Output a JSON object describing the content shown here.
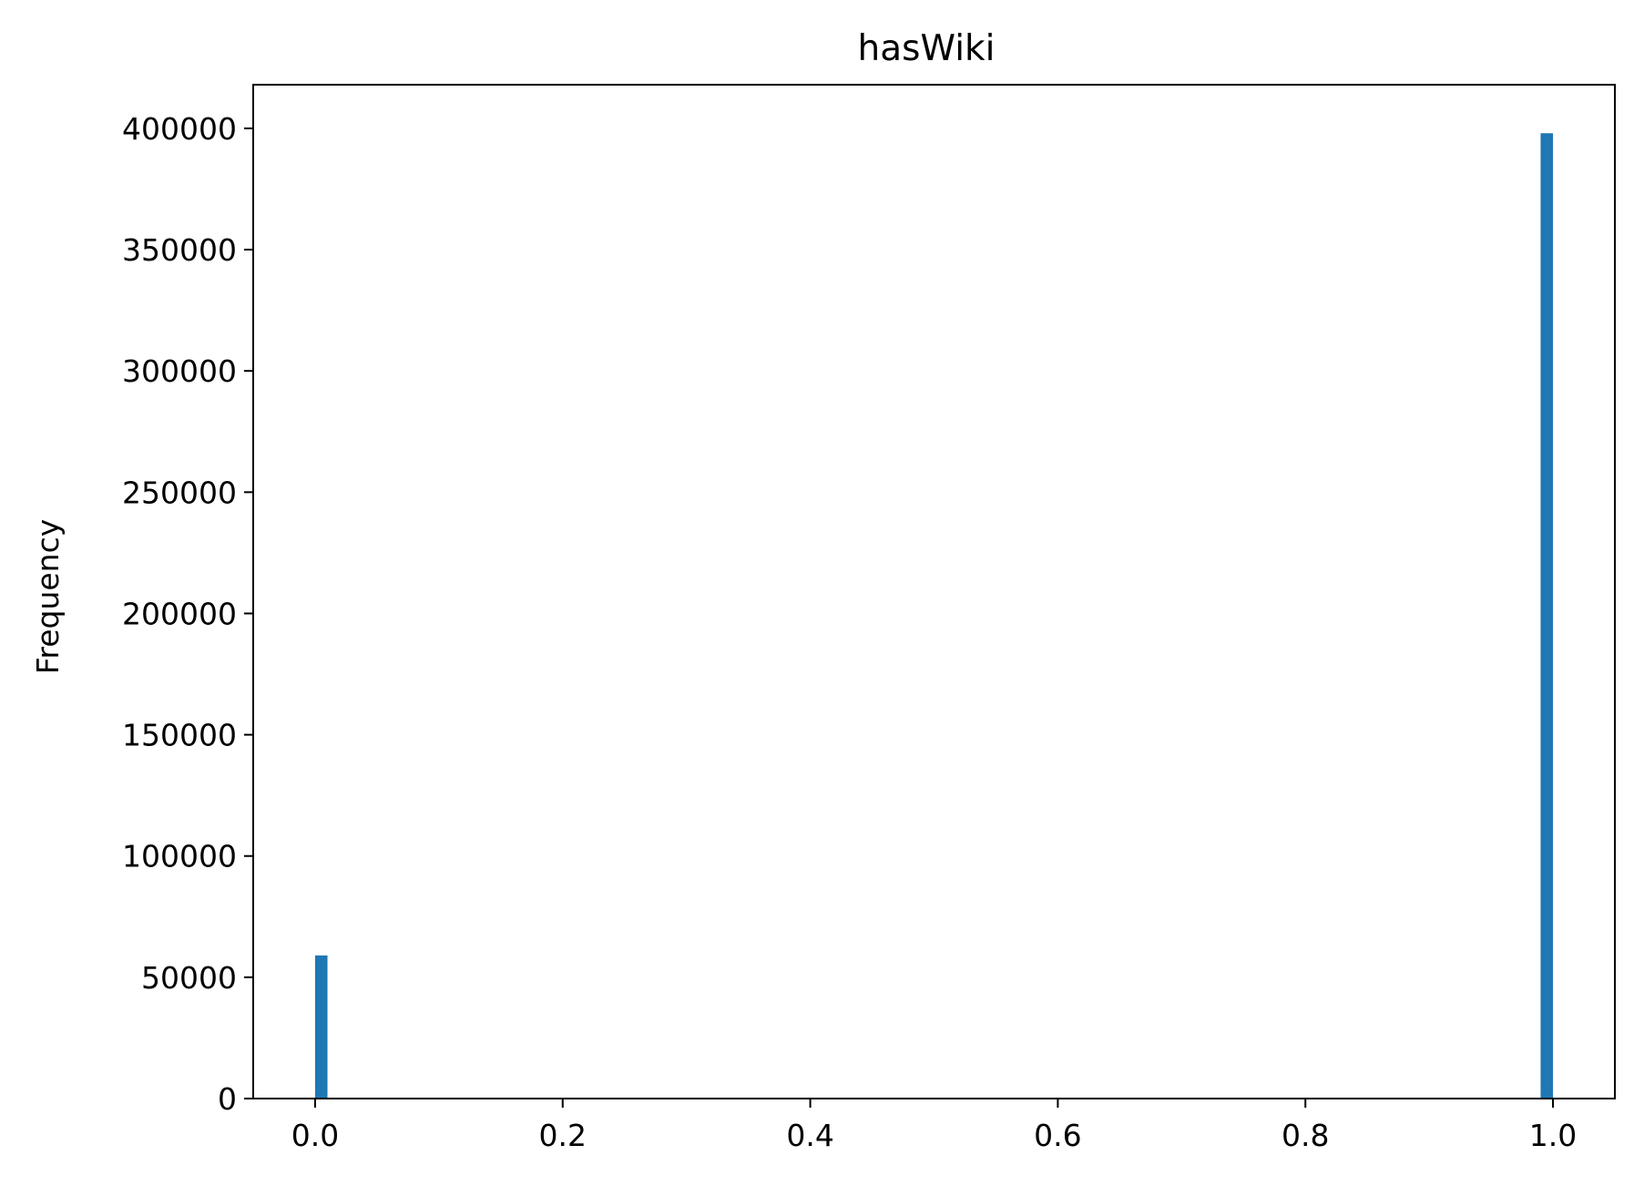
{
  "chart_data": {
    "type": "bar",
    "title": "hasWiki",
    "xlabel": "",
    "ylabel": "Frequency",
    "xlim": [
      -0.05,
      1.05
    ],
    "ylim": [
      0,
      418000
    ],
    "x_ticks": [
      "0.0",
      "0.2",
      "0.4",
      "0.6",
      "0.8",
      "1.0"
    ],
    "y_ticks": [
      "0",
      "50000",
      "100000",
      "150000",
      "200000",
      "250000",
      "300000",
      "350000",
      "400000"
    ],
    "bins": [
      {
        "x0": 0.0,
        "x1": 0.01,
        "value": 59000
      },
      {
        "x0": 0.99,
        "x1": 1.0,
        "value": 398000
      }
    ],
    "grid": false,
    "bar_color": "#1f77b4"
  }
}
